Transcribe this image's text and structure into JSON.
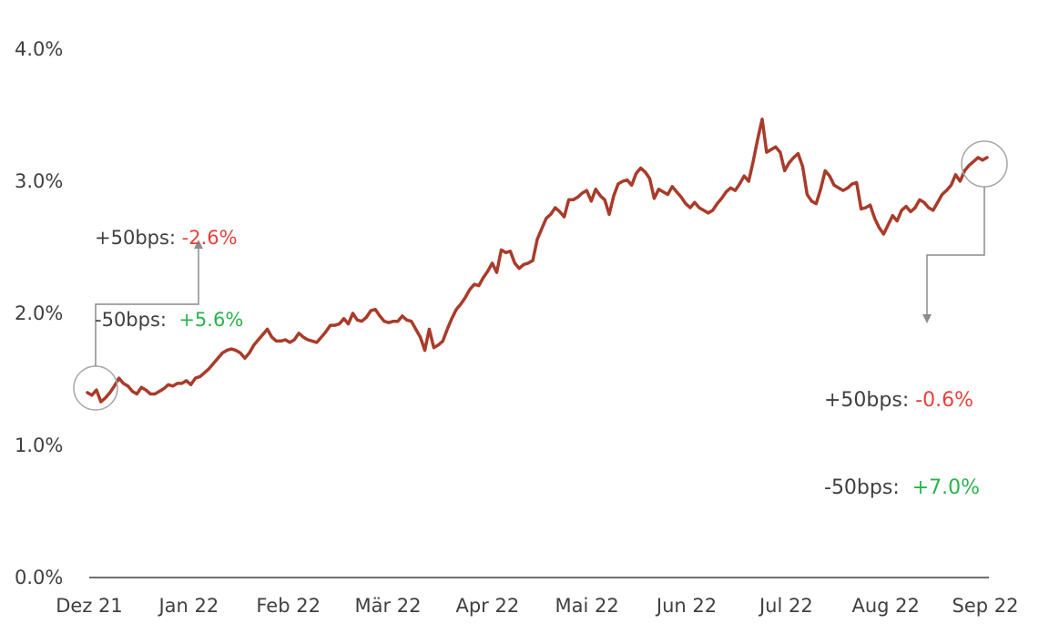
{
  "chart_data": {
    "type": "line",
    "yticks": [
      "4.0%",
      "3.0%",
      "2.0%",
      "1.0%",
      "0.0%"
    ],
    "ylim": [
      0,
      4.0
    ],
    "xticks": [
      "Dez 21",
      "Jan 22",
      "Feb 22",
      "Mär 22",
      "Apr 22",
      "Mai 22",
      "Jun 22",
      "Jul 22",
      "Aug 22",
      "Sep 22"
    ],
    "line_color": "#a93b2a",
    "grid": false,
    "series": [
      {
        "values": [
          1.4,
          1.38,
          1.42,
          1.33,
          1.36,
          1.4,
          1.45,
          1.51,
          1.47,
          1.45,
          1.41,
          1.39,
          1.44,
          1.42,
          1.39,
          1.39,
          1.41,
          1.43,
          1.46,
          1.45,
          1.47,
          1.47,
          1.49,
          1.46,
          1.51,
          1.52,
          1.55,
          1.58,
          1.62,
          1.66,
          1.7,
          1.72,
          1.73,
          1.72,
          1.7,
          1.66,
          1.7,
          1.76,
          1.8,
          1.84,
          1.88,
          1.82,
          1.79,
          1.79,
          1.8,
          1.78,
          1.8,
          1.85,
          1.82,
          1.8,
          1.79,
          1.78,
          1.82,
          1.86,
          1.91,
          1.91,
          1.92,
          1.96,
          1.92,
          2.0,
          1.95,
          1.94,
          1.97,
          2.02,
          2.03,
          1.98,
          1.94,
          1.93,
          1.94,
          1.94,
          1.98,
          1.95,
          1.94,
          1.88,
          1.82,
          1.72,
          1.88,
          1.74,
          1.76,
          1.79,
          1.88,
          1.96,
          2.03,
          2.07,
          2.12,
          2.18,
          2.22,
          2.21,
          2.27,
          2.32,
          2.38,
          2.31,
          2.48,
          2.46,
          2.47,
          2.38,
          2.34,
          2.37,
          2.38,
          2.4,
          2.56,
          2.64,
          2.72,
          2.75,
          2.8,
          2.77,
          2.73,
          2.86,
          2.86,
          2.88,
          2.91,
          2.93,
          2.85,
          2.94,
          2.89,
          2.86,
          2.75,
          2.89,
          2.98,
          3.0,
          3.01,
          2.97,
          3.06,
          3.1,
          3.07,
          3.02,
          2.87,
          2.94,
          2.92,
          2.9,
          2.96,
          2.92,
          2.88,
          2.83,
          2.8,
          2.84,
          2.8,
          2.78,
          2.76,
          2.78,
          2.83,
          2.87,
          2.92,
          2.95,
          2.93,
          2.98,
          3.04,
          3.0,
          3.15,
          3.32,
          3.47,
          3.22,
          3.24,
          3.26,
          3.22,
          3.08,
          3.14,
          3.18,
          3.21,
          3.11,
          2.9,
          2.85,
          2.83,
          2.94,
          3.08,
          3.04,
          2.97,
          2.95,
          2.93,
          2.95,
          2.98,
          2.99,
          2.79,
          2.8,
          2.82,
          2.72,
          2.65,
          2.6,
          2.67,
          2.74,
          2.7,
          2.78,
          2.81,
          2.77,
          2.8,
          2.86,
          2.84,
          2.8,
          2.78,
          2.84,
          2.9,
          2.93,
          2.97,
          3.05,
          3.0,
          3.08,
          3.12,
          3.15,
          3.18,
          3.16,
          3.18
        ]
      }
    ]
  },
  "annotations": {
    "start": {
      "up_label": "+50bps: ",
      "up_value": "-2.6%",
      "down_label": "-50bps:  ",
      "down_value": "+5.6%"
    },
    "end": {
      "up_label": "+50bps: ",
      "up_value": "-0.6%",
      "down_label": "-50bps:  ",
      "down_value": "+7.0%"
    }
  }
}
